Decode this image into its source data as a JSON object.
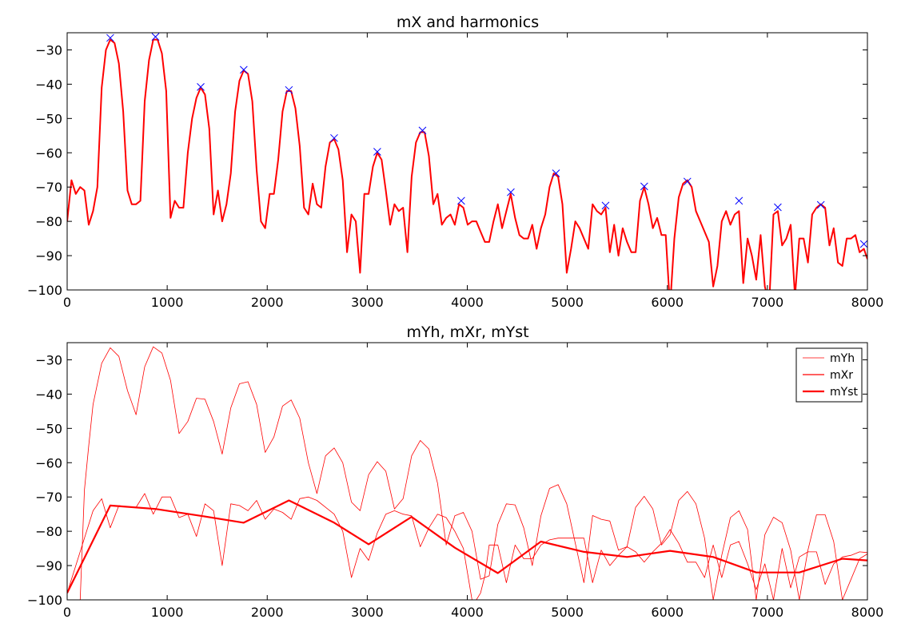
{
  "chart_data": [
    {
      "type": "line",
      "title": "mX and harmonics",
      "xlabel": "",
      "ylabel": "",
      "xlim": [
        0,
        8000
      ],
      "ylim": [
        -100,
        -25
      ],
      "xticks": [
        0,
        1000,
        2000,
        3000,
        4000,
        5000,
        6000,
        7000,
        8000
      ],
      "yticks": [
        -100,
        -90,
        -80,
        -70,
        -60,
        -50,
        -40,
        -30
      ],
      "xtick_labels": [
        "0",
        "1000",
        "2000",
        "3000",
        "4000",
        "5000",
        "6000",
        "7000",
        "8000"
      ],
      "ytick_labels": [
        "−100",
        "−90",
        "−80",
        "−70",
        "−60",
        "−50",
        "−40",
        "−30"
      ],
      "grid": false,
      "series": [
        {
          "color": "#ff0000",
          "style": "line",
          "x": [
            0,
            43,
            86,
            130,
            173,
            216,
            259,
            302,
            345,
            388,
            431,
            474,
            517,
            560,
            603,
            646,
            689,
            732,
            775,
            818,
            861,
            904,
            947,
            990,
            1033,
            1076,
            1119,
            1162,
            1206,
            1249,
            1292,
            1335,
            1378,
            1421,
            1464,
            1507,
            1550,
            1593,
            1636,
            1679,
            1722,
            1765,
            1808,
            1851,
            1894,
            1937,
            1980,
            2024,
            2067,
            2110,
            2153,
            2196,
            2239,
            2282,
            2325,
            2368,
            2411,
            2454,
            2497,
            2540,
            2583,
            2626,
            2669,
            2712,
            2755,
            2798,
            2842,
            2885,
            2928,
            2971,
            3014,
            3057,
            3100,
            3143,
            3186,
            3229,
            3272,
            3315,
            3358,
            3401,
            3444,
            3487,
            3530,
            3573,
            3616,
            3660,
            3703,
            3746,
            3789,
            3832,
            3875,
            3918,
            3961,
            4004,
            4047,
            4090,
            4133,
            4176,
            4219,
            4262,
            4305,
            4348,
            4391,
            4434,
            4478,
            4521,
            4564,
            4607,
            4650,
            4693,
            4736,
            4779,
            4822,
            4865,
            4908,
            4951,
            4994,
            5037,
            5080,
            5123,
            5166,
            5209,
            5252,
            5296,
            5339,
            5382,
            5425,
            5468,
            5511,
            5554,
            5597,
            5640,
            5683,
            5726,
            5769,
            5812,
            5855,
            5898,
            5941,
            5984,
            6027,
            6070,
            6114,
            6157,
            6200,
            6243,
            6286,
            6329,
            6372,
            6415,
            6458,
            6501,
            6544,
            6587,
            6630,
            6673,
            6716,
            6759,
            6802,
            6845,
            6888,
            6932,
            6975,
            7018,
            7061,
            7104,
            7147,
            7190,
            7233,
            7276,
            7319,
            7362,
            7405,
            7448,
            7491,
            7534,
            7577,
            7620,
            7663,
            7706,
            7750,
            7793,
            7836,
            7879,
            7922,
            7965,
            8000
          ],
          "y": [
            -80,
            -68,
            -72,
            -70,
            -71,
            -81,
            -77,
            -70,
            -41,
            -30,
            -27,
            -28,
            -34,
            -48,
            -71,
            -75,
            -75,
            -74,
            -45,
            -33,
            -27,
            -27,
            -31,
            -42,
            -79,
            -74,
            -76,
            -76,
            -60,
            -50,
            -44,
            -41,
            -43,
            -53,
            -78,
            -71,
            -80,
            -75,
            -66,
            -48,
            -39,
            -36,
            -37,
            -45,
            -65,
            -80,
            -82,
            -72,
            -72,
            -62,
            -48,
            -42,
            -42,
            -47,
            -58,
            -76,
            -78,
            -69,
            -75,
            -76,
            -64,
            -57,
            -56,
            -59,
            -68,
            -89,
            -78,
            -80,
            -95,
            -72,
            -72,
            -64,
            -60,
            -62,
            -71,
            -81,
            -75,
            -77,
            -76,
            -89,
            -67,
            -57,
            -54,
            -54,
            -61,
            -75,
            -72,
            -81,
            -79,
            -78,
            -81,
            -75,
            -76,
            -81,
            -80,
            -80,
            -83,
            -86,
            -86,
            -80,
            -75,
            -82,
            -77,
            -72,
            -79,
            -84,
            -85,
            -85,
            -81,
            -88,
            -82,
            -78,
            -70,
            -66,
            -67,
            -75,
            -95,
            -88,
            -80,
            -82,
            -85,
            -88,
            -75,
            -77,
            -78,
            -76,
            -89,
            -81,
            -90,
            -82,
            -86,
            -89,
            -89,
            -74,
            -70,
            -75,
            -82,
            -79,
            -84,
            -84,
            -105,
            -85,
            -73,
            -69,
            -68,
            -70,
            -77,
            -80,
            -83,
            -86,
            -99,
            -93,
            -80,
            -77,
            -81,
            -78,
            -77,
            -98,
            -85,
            -90,
            -97,
            -84,
            -99,
            -104,
            -78,
            -77,
            -87,
            -85,
            -81,
            -102,
            -85,
            -85,
            -92,
            -78,
            -76,
            -75,
            -76,
            -87,
            -82,
            -92,
            -93,
            -85,
            -85,
            -84,
            -89,
            -88,
            -91
          ]
        },
        {
          "name": "harmonics",
          "color": "#0000ff",
          "style": "x-marker",
          "x": [
            431,
            883,
            1335,
            1765,
            2217,
            2669,
            3100,
            3552,
            3939,
            4435,
            4887,
            5382,
            5769,
            6200,
            6716,
            7104,
            7534,
            7965
          ],
          "y": [
            -26.5,
            -26.2,
            -40.8,
            -35.8,
            -41.7,
            -55.7,
            -59.7,
            -53.5,
            -74,
            -71.5,
            -66,
            -75.4,
            -69.8,
            -68.4,
            -74,
            -75.9,
            -75.2,
            -86.6
          ]
        }
      ]
    },
    {
      "type": "line",
      "title": "mYh, mXr, mYst",
      "xlabel": "",
      "ylabel": "",
      "xlim": [
        0,
        8000
      ],
      "ylim": [
        -100,
        -25
      ],
      "xticks": [
        0,
        1000,
        2000,
        3000,
        4000,
        5000,
        6000,
        7000,
        8000
      ],
      "yticks": [
        -100,
        -90,
        -80,
        -70,
        -60,
        -50,
        -40,
        -30
      ],
      "xtick_labels": [
        "0",
        "1000",
        "2000",
        "3000",
        "4000",
        "5000",
        "6000",
        "7000",
        "8000"
      ],
      "ytick_labels": [
        "−100",
        "−90",
        "−80",
        "−70",
        "−60",
        "−50",
        "−40",
        "−30"
      ],
      "grid": false,
      "legend_position": "top-right",
      "series": [
        {
          "name": "mYh",
          "color": "#ff0000",
          "width": "thin",
          "x": [
            0,
            86,
            130,
            173,
            216,
            259,
            345,
            431,
            517,
            603,
            689,
            775,
            861,
            947,
            1033,
            1119,
            1206,
            1292,
            1378,
            1464,
            1550,
            1636,
            1722,
            1808,
            1894,
            1980,
            2067,
            2153,
            2239,
            2325,
            2411,
            2497,
            2583,
            2669,
            2755,
            2842,
            2928,
            3014,
            3100,
            3186,
            3272,
            3358,
            3444,
            3530,
            3616,
            3703,
            3789,
            3875,
            3961,
            4047,
            4133,
            4219,
            4305,
            4391,
            4478,
            4564,
            4650,
            4736,
            4822,
            4908,
            4994,
            5080,
            5166,
            5252,
            5339,
            5425,
            5511,
            5597,
            5683,
            5769,
            5855,
            5941,
            6027,
            6114,
            6200,
            6286,
            6372,
            6458,
            6544,
            6630,
            6716,
            6802,
            6888,
            6975,
            7061,
            7147,
            7233,
            7319,
            7405,
            7491,
            7577,
            7663,
            7750,
            7836,
            7922,
            8000
          ],
          "y": [
            -100,
            -100,
            -100,
            -68,
            -55,
            -43,
            -31,
            -26.5,
            -29,
            -39,
            -46,
            -32,
            -26.2,
            -28,
            -36,
            -51.5,
            -48,
            -41.2,
            -41.5,
            -48,
            -57.5,
            -44,
            -37,
            -36.4,
            -43,
            -57,
            -52.5,
            -43.5,
            -41.7,
            -47,
            -60,
            -69,
            -58,
            -55.7,
            -60,
            -71.5,
            -74,
            -63.5,
            -59.7,
            -62.5,
            -73.5,
            -70.5,
            -58,
            -53.5,
            -56,
            -66,
            -84,
            -75.5,
            -74.5,
            -80,
            -94,
            -93,
            -78,
            -72,
            -72.3,
            -79,
            -90,
            -75.5,
            -67.5,
            -66.4,
            -72,
            -83.5,
            -95,
            -75.4,
            -76.5,
            -77,
            -85.5,
            -84.5,
            -73,
            -69.8,
            -73.5,
            -84,
            -81,
            -71,
            -68.4,
            -72,
            -82,
            -100,
            -87,
            -76,
            -74,
            -79.5,
            -100,
            -81,
            -75.9,
            -77.5,
            -85.5,
            -100,
            -85.5,
            -75.2,
            -75.2,
            -83,
            -100,
            -94,
            -88,
            -86.6
          ]
        },
        {
          "name": "mXr",
          "color": "#ff0000",
          "width": "thin",
          "x": [
            0,
            86,
            173,
            259,
            345,
            431,
            517,
            603,
            689,
            775,
            861,
            947,
            1033,
            1119,
            1206,
            1292,
            1378,
            1464,
            1550,
            1636,
            1722,
            1808,
            1894,
            1980,
            2067,
            2153,
            2239,
            2325,
            2411,
            2497,
            2583,
            2669,
            2755,
            2842,
            2928,
            3014,
            3100,
            3186,
            3272,
            3358,
            3444,
            3530,
            3616,
            3703,
            3789,
            3875,
            3961,
            4047,
            4090,
            4133,
            4176,
            4219,
            4305,
            4391,
            4478,
            4564,
            4650,
            4736,
            4822,
            4908,
            4994,
            5080,
            5166,
            5252,
            5339,
            5425,
            5511,
            5597,
            5683,
            5769,
            5855,
            5941,
            6027,
            6114,
            6200,
            6286,
            6372,
            6458,
            6544,
            6630,
            6716,
            6802,
            6888,
            6975,
            7061,
            7147,
            7233,
            7319,
            7405,
            7491,
            7577,
            7663,
            7750,
            7836,
            7922,
            8000
          ],
          "y": [
            -98,
            -90,
            -82,
            -74,
            -70.5,
            -79,
            -72.5,
            -73,
            -73,
            -69,
            -75,
            -70,
            -70,
            -76,
            -75,
            -81.5,
            -72,
            -74,
            -90,
            -72,
            -72.5,
            -74,
            -71,
            -76.5,
            -73.5,
            -74.5,
            -76.5,
            -70.5,
            -70,
            -71,
            -73,
            -75,
            -80,
            -93.5,
            -85,
            -88.5,
            -80.5,
            -75,
            -74,
            -75,
            -75.5,
            -84.5,
            -79,
            -75,
            -76,
            -80,
            -85,
            -100,
            -100,
            -98,
            -93,
            -84,
            -84,
            -95,
            -84,
            -88,
            -88,
            -84,
            -82.5,
            -82,
            -82,
            -82,
            -82,
            -95,
            -85.5,
            -90,
            -87,
            -84.5,
            -86,
            -89,
            -86,
            -83.5,
            -79.5,
            -83.5,
            -89,
            -89,
            -93.5,
            -84,
            -93.5,
            -84,
            -83,
            -89.5,
            -97,
            -89.5,
            -100,
            -85,
            -96.5,
            -87.5,
            -86,
            -86,
            -95.5,
            -89.5,
            -87.5,
            -87,
            -86,
            -86.2
          ]
        },
        {
          "name": "mYst",
          "color": "#ff0000",
          "width": "thick",
          "x": [
            0,
            431,
            883,
            1335,
            1765,
            2217,
            2669,
            3014,
            3444,
            3875,
            4305,
            4736,
            5166,
            5597,
            6027,
            6458,
            6888,
            7104,
            7319,
            7750,
            8000
          ],
          "y": [
            -98,
            -72.5,
            -73.5,
            -75.5,
            -77.5,
            -71,
            -77.5,
            -83.8,
            -75.8,
            -84.8,
            -92.2,
            -83,
            -86,
            -87.5,
            -85.7,
            -87.5,
            -92,
            -92,
            -92,
            -88,
            -88.5
          ]
        }
      ]
    }
  ]
}
